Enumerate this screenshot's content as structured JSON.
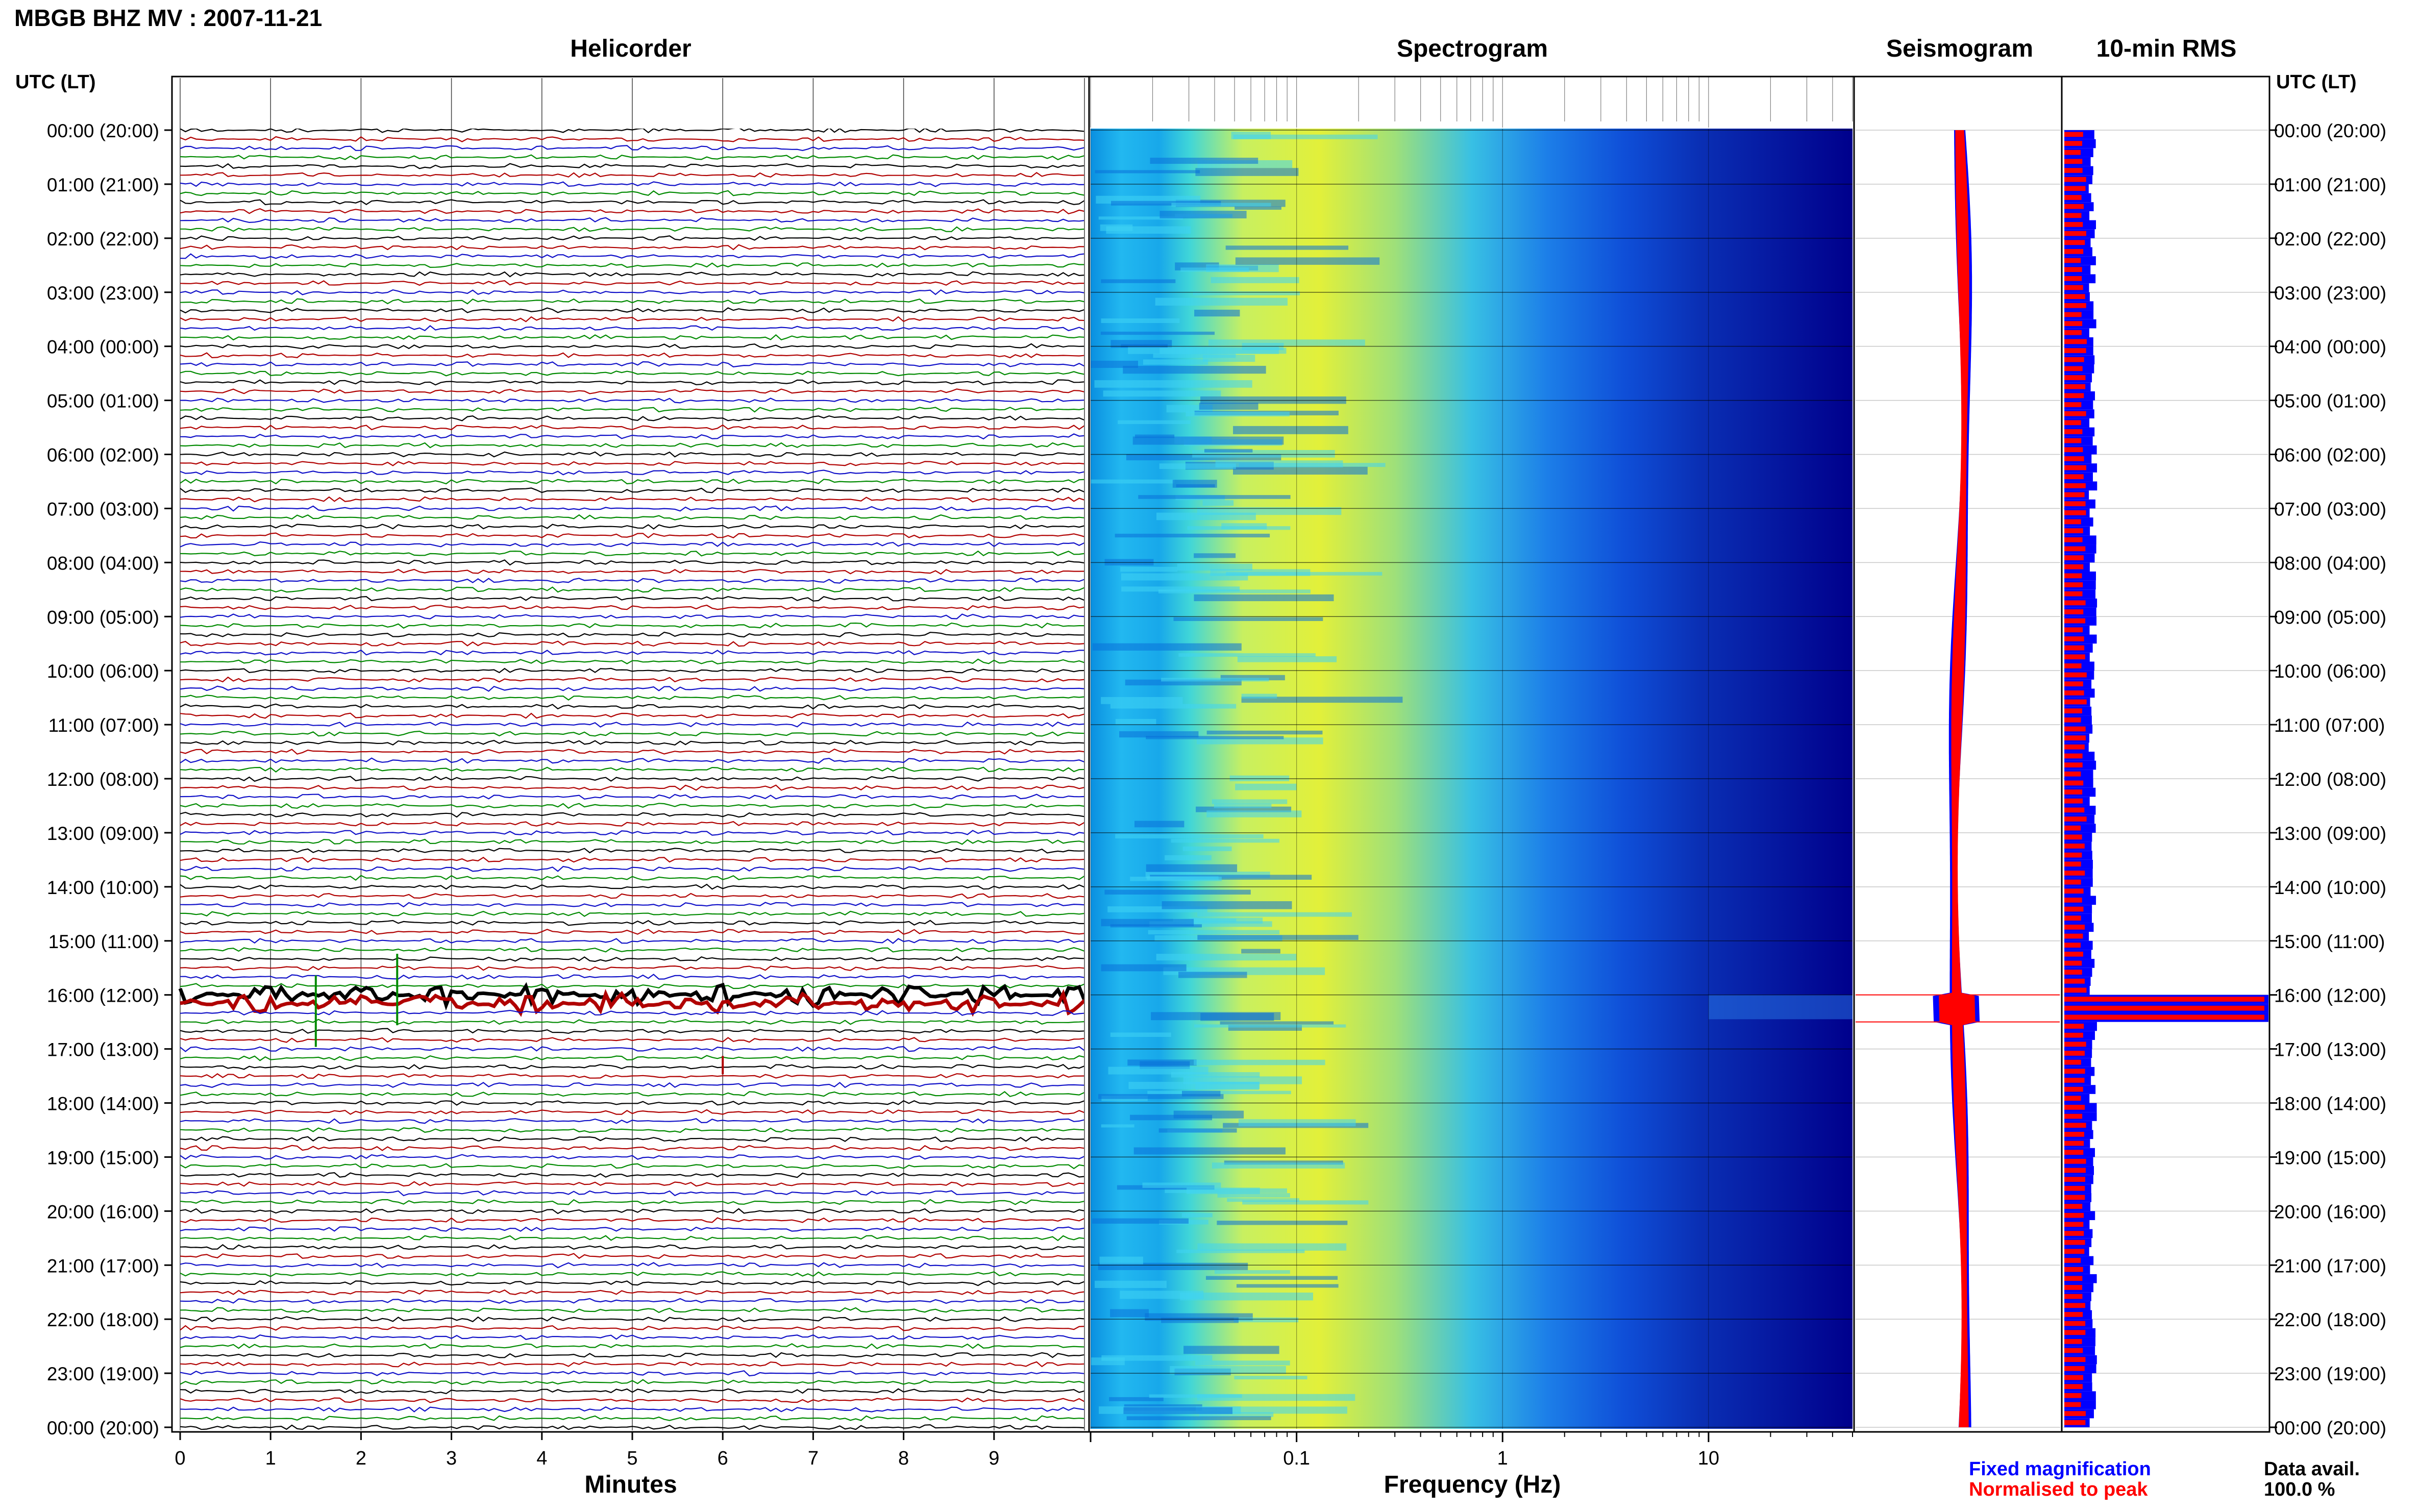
{
  "page": {
    "title": "MBGB BHZ MV : 2007-11-21"
  },
  "panels": {
    "helicorder": "Helicorder",
    "spectrogram": "Spectrogram",
    "seismogram": "Seismogram",
    "rms": "10-min RMS"
  },
  "time_axis": {
    "header": "UTC (LT)",
    "labels": [
      "00:00 (20:00)",
      "01:00 (21:00)",
      "02:00 (22:00)",
      "03:00 (23:00)",
      "04:00 (00:00)",
      "05:00 (01:00)",
      "06:00 (02:00)",
      "07:00 (03:00)",
      "08:00 (04:00)",
      "09:00 (05:00)",
      "10:00 (06:00)",
      "11:00 (07:00)",
      "12:00 (08:00)",
      "13:00 (09:00)",
      "14:00 (10:00)",
      "15:00 (11:00)",
      "16:00 (12:00)",
      "17:00 (13:00)",
      "18:00 (14:00)",
      "19:00 (15:00)",
      "20:00 (16:00)",
      "21:00 (17:00)",
      "22:00 (18:00)",
      "23:00 (19:00)",
      "00:00 (20:00)"
    ]
  },
  "legend": {
    "fixed": "Fixed magnification",
    "normalised": "Normalised to peak",
    "data_avail_label": "Data avail.",
    "data_avail_value": "100.0 %"
  },
  "colors": {
    "helicorder_cycle": [
      "#000000",
      "#b00000",
      "#1010c8",
      "#008a00"
    ],
    "fixed": "#0000ff",
    "normalised": "#ff0000",
    "spectrogram_background": "#00008c"
  },
  "chart_data": [
    {
      "type": "line",
      "name": "helicorder",
      "xlabel": "Minutes",
      "x_ticks": [
        0,
        1,
        2,
        3,
        4,
        5,
        6,
        7,
        8,
        9
      ],
      "xlim": [
        0,
        10
      ],
      "trace_interval_minutes": 10,
      "traces_per_day": 144,
      "events": [
        {
          "hour": 16.0,
          "hour_end": 16.33,
          "description_level": "strong"
        },
        {
          "hour": 16.3,
          "minute": 1.5,
          "level": "spike"
        },
        {
          "hour": 15.9,
          "minute": 2.4,
          "level": "spike"
        },
        {
          "hour": 17.3,
          "minute": 6.0,
          "level": "moderate"
        }
      ]
    },
    {
      "type": "heatmap",
      "name": "spectrogram",
      "xlabel": "Frequency (Hz)",
      "x_scale": "log",
      "xlim": [
        0.01,
        50
      ],
      "x_tick_labels": [
        {
          "value": 0.1,
          "label": "0.1"
        },
        {
          "value": 1,
          "label": "1"
        },
        {
          "value": 10,
          "label": "10"
        }
      ],
      "peak_frequency_hz": 0.25
    },
    {
      "type": "line",
      "name": "seismogram",
      "event_hour": [
        16.0,
        16.5
      ]
    },
    {
      "type": "bar",
      "name": "rms",
      "orientation": "horizontal",
      "bin_minutes": 10,
      "fixed_level": 0.14,
      "normalised_level": 0.1,
      "event": {
        "hour_start": 16.0,
        "hour_end": 16.5,
        "fixed": 1.0,
        "normalised": 0.98
      }
    }
  ]
}
